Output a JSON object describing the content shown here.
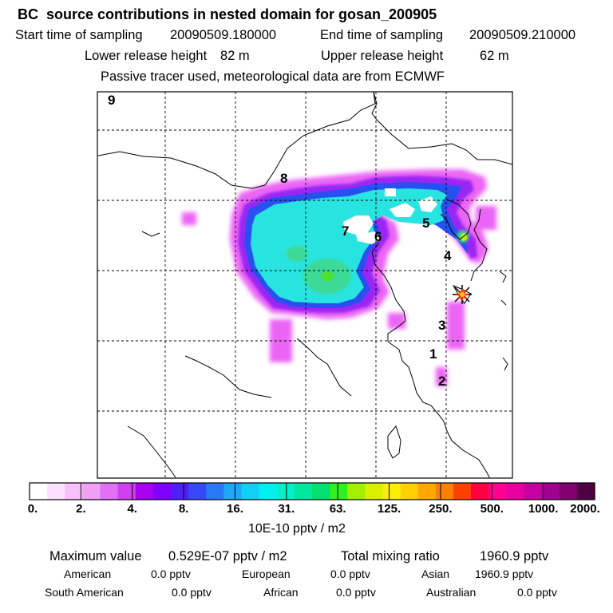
{
  "title": "BC  source contributions in nested domain for gosan_200905",
  "header": {
    "start_label": "Start time of sampling",
    "start_value": "20090509.180000",
    "end_label": "End time of sampling",
    "end_value": "20090509.210000",
    "lower_label": "Lower release height",
    "lower_value": "82 m",
    "upper_label": "Upper release height",
    "upper_value": "62 m",
    "note": "Passive tracer used, meteorological data are from ECMWF"
  },
  "map": {
    "labels": [
      "9",
      "8",
      "7",
      "6",
      "5",
      "4",
      "3",
      "1",
      "2"
    ],
    "colors": {
      "magenta_outer": "#e030f0",
      "violet": "#8820f0",
      "blue": "#3050f0",
      "cyan": "#20e8e8",
      "green": "#40e090",
      "receptor": "#ff3000"
    }
  },
  "colorbar": {
    "tick_labels": [
      "0.",
      "2.",
      "4.",
      "8.",
      "16.",
      "31.",
      "63.",
      "125.",
      "250.",
      "500.",
      "1000.",
      "2000."
    ],
    "colors": [
      "#ffffff",
      "#fde0fd",
      "#f8c0f8",
      "#f0a0f4",
      "#e070f4",
      "#d040f0",
      "#a800f0",
      "#8000ff",
      "#5020f8",
      "#3848f8",
      "#2878f8",
      "#20a8f8",
      "#10d0f4",
      "#00f0f0",
      "#00f0c8",
      "#00e8a0",
      "#00e070",
      "#30f020",
      "#a0f000",
      "#d8f000",
      "#f8f000",
      "#ffd000",
      "#ffa800",
      "#ff8000",
      "#ff4000",
      "#ff0040",
      "#ff0090",
      "#e800a0",
      "#c800a0",
      "#a00090",
      "#800070",
      "#500040"
    ],
    "units": "10E-10 pptv / m2"
  },
  "summary": {
    "max_label": "Maximum value",
    "max_value": "0.529E-07 pptv / m2",
    "total_label": "Total mixing ratio",
    "total_value": "1960.9 pptv",
    "regions": [
      {
        "name": "American",
        "value": "0.0 pptv"
      },
      {
        "name": "European",
        "value": "0.0 pptv"
      },
      {
        "name": "Asian",
        "value": "1960.9 pptv"
      },
      {
        "name": "South American",
        "value": "0.0 pptv"
      },
      {
        "name": "African",
        "value": "0.0 pptv"
      },
      {
        "name": "Australian",
        "value": "0.0 pptv"
      }
    ]
  },
  "chart_data": {
    "type": "heatmap",
    "title": "BC  source contributions in nested domain for gosan_200905",
    "colorbar_ticks": [
      0,
      2,
      4,
      8,
      16,
      31,
      63,
      125,
      250,
      500,
      1000,
      2000
    ],
    "colorbar_label": "10E-10 pptv / m2",
    "max_value": "0.529E-07 pptv / m2",
    "total_mixing_ratio_pptv": 1960.9,
    "region_contributions_pptv": {
      "American": 0.0,
      "European": 0.0,
      "Asian": 1960.9,
      "South American": 0.0,
      "African": 0.0,
      "Australian": 0.0
    },
    "grid": true
  }
}
